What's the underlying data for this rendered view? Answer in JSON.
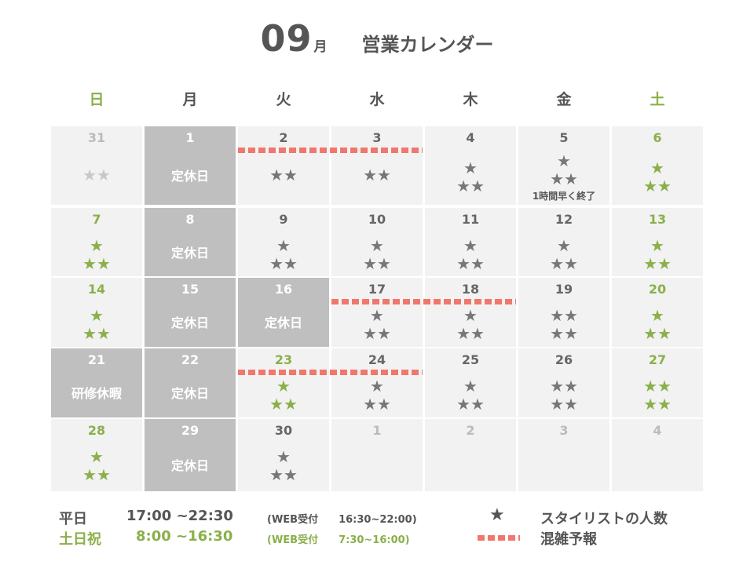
{
  "header": {
    "month": "09",
    "month_unit": "月",
    "title": "営業カレンダー"
  },
  "colors": {
    "green": "#8ab04a",
    "closed_gray": "#bfbfbf",
    "cell_gray": "#f2f2f2",
    "busy_red": "#f0776c"
  },
  "weekdays": [
    "日",
    "月",
    "火",
    "水",
    "木",
    "金",
    "土"
  ],
  "weeks": [
    [
      {
        "day": "31",
        "stars": [
          "★★"
        ],
        "tone": "light"
      },
      {
        "day": "1",
        "closed": true,
        "label": "定休日"
      },
      {
        "day": "2",
        "stars": [
          "★★"
        ]
      },
      {
        "day": "3",
        "stars": [
          "★★"
        ]
      },
      {
        "day": "4",
        "stars": [
          "★",
          "★★"
        ]
      },
      {
        "day": "5",
        "stars": [
          "★",
          "★★"
        ],
        "note": "1時間早く終了"
      },
      {
        "day": "6",
        "stars": [
          "★",
          "★★"
        ],
        "tone": "green"
      }
    ],
    [
      {
        "day": "7",
        "stars": [
          "★",
          "★★"
        ],
        "tone": "green"
      },
      {
        "day": "8",
        "closed": true,
        "label": "定休日"
      },
      {
        "day": "9",
        "stars": [
          "★",
          "★★"
        ]
      },
      {
        "day": "10",
        "stars": [
          "★",
          "★★"
        ]
      },
      {
        "day": "11",
        "stars": [
          "★",
          "★★"
        ]
      },
      {
        "day": "12",
        "stars": [
          "★",
          "★★"
        ]
      },
      {
        "day": "13",
        "stars": [
          "★",
          "★★"
        ],
        "tone": "green"
      }
    ],
    [
      {
        "day": "14",
        "stars": [
          "★",
          "★★"
        ],
        "tone": "green"
      },
      {
        "day": "15",
        "closed": true,
        "label": "定休日"
      },
      {
        "day": "16",
        "closed": true,
        "label": "定休日"
      },
      {
        "day": "17",
        "stars": [
          "★",
          "★★"
        ]
      },
      {
        "day": "18",
        "stars": [
          "★",
          "★★"
        ]
      },
      {
        "day": "19",
        "stars": [
          "★★",
          "★★"
        ]
      },
      {
        "day": "20",
        "stars": [
          "★",
          "★★"
        ],
        "tone": "green"
      }
    ],
    [
      {
        "day": "21",
        "closed": true,
        "label": "研修休暇"
      },
      {
        "day": "22",
        "closed": true,
        "label": "定休日"
      },
      {
        "day": "23",
        "stars": [
          "★",
          "★★"
        ],
        "tone": "green"
      },
      {
        "day": "24",
        "stars": [
          "★",
          "★★"
        ]
      },
      {
        "day": "25",
        "stars": [
          "★",
          "★★"
        ]
      },
      {
        "day": "26",
        "stars": [
          "★★",
          "★★"
        ]
      },
      {
        "day": "27",
        "stars": [
          "★★",
          "★★"
        ],
        "tone": "green"
      }
    ],
    [
      {
        "day": "28",
        "stars": [
          "★",
          "★★"
        ],
        "tone": "green"
      },
      {
        "day": "29",
        "closed": true,
        "label": "定休日"
      },
      {
        "day": "30",
        "stars": [
          "★",
          "★★"
        ]
      },
      {
        "day": "1",
        "empty": true
      },
      {
        "day": "2",
        "empty": true
      },
      {
        "day": "3",
        "empty": true
      },
      {
        "day": "4",
        "empty": true
      }
    ]
  ],
  "busy_spans": [
    {
      "week": 0,
      "from_col": 2,
      "to_col": 3
    },
    {
      "week": 2,
      "from_col": 3,
      "to_col": 4
    },
    {
      "week": 3,
      "from_col": 2,
      "to_col": 3
    }
  ],
  "footer": {
    "weekday_label": "平日",
    "weekday_hours": "17:00 ~22:30",
    "weekday_web": "(WEB受付　　16:30~22:00)",
    "holiday_label": "土日祝",
    "holiday_hours": "8:00 ~16:30",
    "holiday_web": "(WEB受付　　7:30~16:00)",
    "legend_star": "★",
    "legend_star_label": "スタイリストの人数",
    "legend_busy_label": "混雑予報"
  }
}
